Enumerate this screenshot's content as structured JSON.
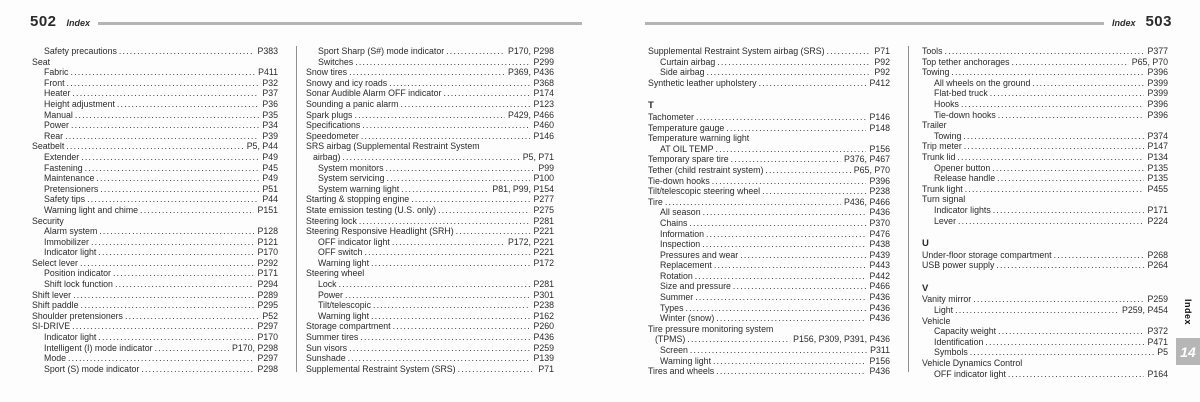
{
  "colors": {
    "rule": "#b4b4b4",
    "divider": "#8f8f8f",
    "text": "#2b2b2b",
    "tab_box": "#b6b6b6",
    "paper": "#fdfdfd"
  },
  "left_page": {
    "number": "502",
    "header_label": "Index",
    "columns": [
      [
        {
          "ind": 1,
          "label": "Safety precautions",
          "pages": "P383"
        },
        {
          "ind": 0,
          "label": "Seat",
          "pages": ""
        },
        {
          "ind": 1,
          "label": "Fabric",
          "pages": "P411"
        },
        {
          "ind": 1,
          "label": "Front",
          "pages": "P32"
        },
        {
          "ind": 1,
          "label": "Heater",
          "pages": "P37"
        },
        {
          "ind": 1,
          "label": "Height adjustment",
          "pages": "P36"
        },
        {
          "ind": 1,
          "label": "Manual",
          "pages": "P35"
        },
        {
          "ind": 1,
          "label": "Power",
          "pages": "P34"
        },
        {
          "ind": 1,
          "label": "Rear",
          "pages": "P39"
        },
        {
          "ind": 0,
          "label": "Seatbelt",
          "pages": "P5, P44"
        },
        {
          "ind": 1,
          "label": "Extender",
          "pages": "P49"
        },
        {
          "ind": 1,
          "label": "Fastening",
          "pages": "P45"
        },
        {
          "ind": 1,
          "label": "Maintenance",
          "pages": "P49"
        },
        {
          "ind": 1,
          "label": "Pretensioners",
          "pages": "P51"
        },
        {
          "ind": 1,
          "label": "Safety tips",
          "pages": "P44"
        },
        {
          "ind": 1,
          "label": "Warning light and chime",
          "pages": "P151"
        },
        {
          "ind": 0,
          "label": "Security",
          "pages": ""
        },
        {
          "ind": 1,
          "label": "Alarm system",
          "pages": "P128"
        },
        {
          "ind": 1,
          "label": "Immobilizer",
          "pages": "P121"
        },
        {
          "ind": 1,
          "label": "Indicator light",
          "pages": "P170"
        },
        {
          "ind": 0,
          "label": "Select lever",
          "pages": "P292"
        },
        {
          "ind": 1,
          "label": "Position indicator",
          "pages": "P171"
        },
        {
          "ind": 1,
          "label": "Shift lock function",
          "pages": "P294"
        },
        {
          "ind": 0,
          "label": "Shift lever",
          "pages": "P289"
        },
        {
          "ind": 0,
          "label": "Shift paddle",
          "pages": "P295"
        },
        {
          "ind": 0,
          "label": "Shoulder pretensioners",
          "pages": "P52"
        },
        {
          "ind": 0,
          "label": "SI-DRIVE",
          "pages": "P297"
        },
        {
          "ind": 1,
          "label": "Indicator light",
          "pages": "P170"
        },
        {
          "ind": 1,
          "label": "Intelligent (I) mode indicator",
          "pages": "P170, P298"
        },
        {
          "ind": 1,
          "label": "Mode",
          "pages": "P297"
        },
        {
          "ind": 1,
          "label": "Sport (S) mode indicator",
          "pages": "P298"
        }
      ],
      [
        {
          "ind": 1,
          "label": "Sport Sharp (S#) mode indicator",
          "pages": "P170, P298"
        },
        {
          "ind": 1,
          "label": "Switches",
          "pages": "P299"
        },
        {
          "ind": 0,
          "label": "Snow tires",
          "pages": "P369, P436"
        },
        {
          "ind": 0,
          "label": "Snowy and icy roads",
          "pages": "P368"
        },
        {
          "ind": 0,
          "label": "Sonar Audible Alarm OFF indicator",
          "pages": "P174"
        },
        {
          "ind": 0,
          "label": "Sounding a panic alarm",
          "pages": "P123"
        },
        {
          "ind": 0,
          "label": "Spark plugs",
          "pages": "P429, P466"
        },
        {
          "ind": 0,
          "label": "Specifications",
          "pages": "P460"
        },
        {
          "ind": 0,
          "label": "Speedometer",
          "pages": "P146"
        },
        {
          "ind": 0,
          "label": "SRS airbag (Supplemental Restraint System",
          "pages": ""
        },
        {
          "ind": "w",
          "label": "airbag)",
          "pages": "P5, P71"
        },
        {
          "ind": 1,
          "label": "System monitors",
          "pages": "P99"
        },
        {
          "ind": 1,
          "label": "System servicing",
          "pages": "P100"
        },
        {
          "ind": 1,
          "label": "System warning light",
          "pages": "P81, P99, P154"
        },
        {
          "ind": 0,
          "label": "Starting & stopping engine",
          "pages": "P277"
        },
        {
          "ind": 0,
          "label": "State emission testing (U.S. only)",
          "pages": "P275"
        },
        {
          "ind": 0,
          "label": "Steering lock",
          "pages": "P281"
        },
        {
          "ind": 0,
          "label": "Steering Responsive Headlight (SRH)",
          "pages": "P221"
        },
        {
          "ind": 1,
          "label": "OFF indicator light",
          "pages": "P172, P221"
        },
        {
          "ind": 1,
          "label": "OFF switch",
          "pages": "P221"
        },
        {
          "ind": 1,
          "label": "Warning light",
          "pages": "P172"
        },
        {
          "ind": 0,
          "label": "Steering wheel",
          "pages": ""
        },
        {
          "ind": 1,
          "label": "Lock",
          "pages": "P281"
        },
        {
          "ind": 1,
          "label": "Power",
          "pages": "P301"
        },
        {
          "ind": 1,
          "label": "Tilt/telescopic",
          "pages": "P238"
        },
        {
          "ind": 1,
          "label": "Warning light",
          "pages": "P162"
        },
        {
          "ind": 0,
          "label": "Storage compartment",
          "pages": "P260"
        },
        {
          "ind": 0,
          "label": "Summer tires",
          "pages": "P436"
        },
        {
          "ind": 0,
          "label": "Sun visors",
          "pages": "P259"
        },
        {
          "ind": 0,
          "label": "Sunshade",
          "pages": "P139"
        },
        {
          "ind": 0,
          "label": "Supplemental Restraint System (SRS)",
          "pages": "P71"
        }
      ]
    ]
  },
  "right_page": {
    "number": "503",
    "header_label": "Index",
    "columns": [
      [
        {
          "ind": 0,
          "label": "Supplemental Restraint System airbag (SRS)",
          "pages": "P71"
        },
        {
          "ind": 1,
          "label": "Curtain airbag",
          "pages": "P92"
        },
        {
          "ind": 1,
          "label": "Side airbag",
          "pages": "P92"
        },
        {
          "ind": 0,
          "label": "Synthetic leather upholstery",
          "pages": "P412"
        },
        {
          "t": "gap"
        },
        {
          "t": "head",
          "label": "T"
        },
        {
          "ind": 0,
          "label": "Tachometer",
          "pages": "P146"
        },
        {
          "ind": 0,
          "label": "Temperature gauge",
          "pages": "P148"
        },
        {
          "ind": 0,
          "label": "Temperature warning light",
          "pages": ""
        },
        {
          "ind": 1,
          "label": "AT OIL TEMP",
          "pages": "P156"
        },
        {
          "ind": 0,
          "label": "Temporary spare tire",
          "pages": "P376, P467"
        },
        {
          "ind": 0,
          "label": "Tether (child restraint system)",
          "pages": "P65, P70"
        },
        {
          "ind": 0,
          "label": "Tie-down hooks",
          "pages": "P396"
        },
        {
          "ind": 0,
          "label": "Tilt/telescopic steering wheel",
          "pages": "P238"
        },
        {
          "ind": 0,
          "label": "Tire",
          "pages": "P436, P466"
        },
        {
          "ind": 1,
          "label": "All season",
          "pages": "P436"
        },
        {
          "ind": 1,
          "label": "Chains",
          "pages": "P370"
        },
        {
          "ind": 1,
          "label": "Information",
          "pages": "P476"
        },
        {
          "ind": 1,
          "label": "Inspection",
          "pages": "P438"
        },
        {
          "ind": 1,
          "label": "Pressures and wear",
          "pages": "P439"
        },
        {
          "ind": 1,
          "label": "Replacement",
          "pages": "P443"
        },
        {
          "ind": 1,
          "label": "Rotation",
          "pages": "P442"
        },
        {
          "ind": 1,
          "label": "Size and pressure",
          "pages": "P466"
        },
        {
          "ind": 1,
          "label": "Summer",
          "pages": "P436"
        },
        {
          "ind": 1,
          "label": "Types",
          "pages": "P436"
        },
        {
          "ind": 1,
          "label": "Winter (snow)",
          "pages": "P436"
        },
        {
          "ind": 0,
          "label": "Tire pressure monitoring system",
          "pages": ""
        },
        {
          "ind": "w",
          "label": "(TPMS)",
          "pages": "P156, P309, P391, P436"
        },
        {
          "ind": 1,
          "label": "Screen",
          "pages": "P311"
        },
        {
          "ind": 1,
          "label": "Warning light",
          "pages": "P156"
        },
        {
          "ind": 0,
          "label": "Tires and wheels",
          "pages": "P436"
        }
      ],
      [
        {
          "ind": 0,
          "label": "Tools",
          "pages": "P377"
        },
        {
          "ind": 0,
          "label": "Top tether anchorages",
          "pages": "P65, P70"
        },
        {
          "ind": 0,
          "label": "Towing",
          "pages": "P396"
        },
        {
          "ind": 1,
          "label": "All wheels on the ground",
          "pages": "P399"
        },
        {
          "ind": 1,
          "label": "Flat-bed truck",
          "pages": "P399"
        },
        {
          "ind": 1,
          "label": "Hooks",
          "pages": "P396"
        },
        {
          "ind": 1,
          "label": "Tie-down hooks",
          "pages": "P396"
        },
        {
          "ind": 0,
          "label": "Trailer",
          "pages": ""
        },
        {
          "ind": 1,
          "label": "Towing",
          "pages": "P374"
        },
        {
          "ind": 0,
          "label": "Trip meter",
          "pages": "P147"
        },
        {
          "ind": 0,
          "label": "Trunk lid",
          "pages": "P134"
        },
        {
          "ind": 1,
          "label": "Opener button",
          "pages": "P135"
        },
        {
          "ind": 1,
          "label": "Release handle",
          "pages": "P135"
        },
        {
          "ind": 0,
          "label": "Trunk light",
          "pages": "P455"
        },
        {
          "ind": 0,
          "label": "Turn signal",
          "pages": ""
        },
        {
          "ind": 1,
          "label": "Indicator lights",
          "pages": "P171"
        },
        {
          "ind": 1,
          "label": "Lever",
          "pages": "P224"
        },
        {
          "t": "gap"
        },
        {
          "t": "head",
          "label": "U"
        },
        {
          "ind": 0,
          "label": "Under-floor storage compartment",
          "pages": "P268"
        },
        {
          "ind": 0,
          "label": "USB power supply",
          "pages": "P264"
        },
        {
          "t": "gap"
        },
        {
          "t": "head",
          "label": "V"
        },
        {
          "ind": 0,
          "label": "Vanity mirror",
          "pages": "P259"
        },
        {
          "ind": 1,
          "label": "Light",
          "pages": "P259, P454"
        },
        {
          "ind": 0,
          "label": "Vehicle",
          "pages": ""
        },
        {
          "ind": 1,
          "label": "Capacity weight",
          "pages": "P372"
        },
        {
          "ind": 1,
          "label": "Identification",
          "pages": "P471"
        },
        {
          "ind": 1,
          "label": "Symbols",
          "pages": "P5"
        },
        {
          "ind": 0,
          "label": "Vehicle Dynamics Control",
          "pages": ""
        },
        {
          "ind": 1,
          "label": "OFF indicator light",
          "pages": "P164"
        }
      ]
    ]
  },
  "side_tab": {
    "label": "Index",
    "chapter": "14"
  }
}
